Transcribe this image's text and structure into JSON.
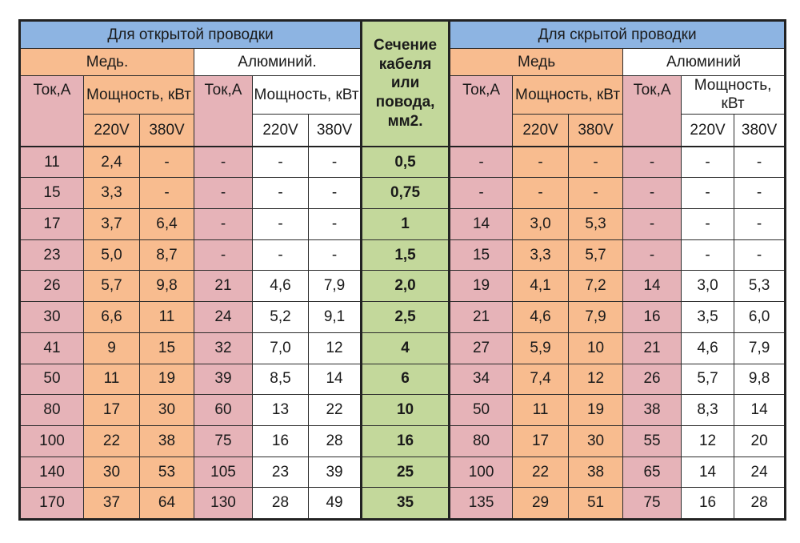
{
  "table": {
    "open_wiring": "Для открытой проводки",
    "hidden_wiring": "Для скрытой проводки",
    "section_header": [
      "Сечение",
      "кабеля",
      "или",
      "повода,",
      "мм2."
    ],
    "open_copper": "Медь.",
    "open_aluminum": "Алюминий.",
    "hidden_copper": "Медь",
    "hidden_aluminum": "Алюминий",
    "current": "Ток,А",
    "power": "Мощность, кВт",
    "v220": "220V",
    "v380": "380V",
    "rows": [
      [
        "11",
        "2,4",
        "-",
        "-",
        "-",
        "-",
        "0,5",
        "-",
        "-",
        "-",
        "-",
        "-",
        "-"
      ],
      [
        "15",
        "3,3",
        "-",
        "-",
        "-",
        "-",
        "0,75",
        "-",
        "-",
        "-",
        "-",
        "-",
        "-"
      ],
      [
        "17",
        "3,7",
        "6,4",
        "-",
        "-",
        "-",
        "1",
        "14",
        "3,0",
        "5,3",
        "-",
        "-",
        "-"
      ],
      [
        "23",
        "5,0",
        "8,7",
        "-",
        "-",
        "-",
        "1,5",
        "15",
        "3,3",
        "5,7",
        "-",
        "-",
        "-"
      ],
      [
        "26",
        "5,7",
        "9,8",
        "21",
        "4,6",
        "7,9",
        "2,0",
        "19",
        "4,1",
        "7,2",
        "14",
        "3,0",
        "5,3"
      ],
      [
        "30",
        "6,6",
        "11",
        "24",
        "5,2",
        "9,1",
        "2,5",
        "21",
        "4,6",
        "7,9",
        "16",
        "3,5",
        "6,0"
      ],
      [
        "41",
        "9",
        "15",
        "32",
        "7,0",
        "12",
        "4",
        "27",
        "5,9",
        "10",
        "21",
        "4,6",
        "7,9"
      ],
      [
        "50",
        "11",
        "19",
        "39",
        "8,5",
        "14",
        "6",
        "34",
        "7,4",
        "12",
        "26",
        "5,7",
        "9,8"
      ],
      [
        "80",
        "17",
        "30",
        "60",
        "13",
        "22",
        "10",
        "50",
        "11",
        "19",
        "38",
        "8,3",
        "14"
      ],
      [
        "100",
        "22",
        "38",
        "75",
        "16",
        "28",
        "16",
        "80",
        "17",
        "30",
        "55",
        "12",
        "20"
      ],
      [
        "140",
        "30",
        "53",
        "105",
        "23",
        "39",
        "25",
        "100",
        "22",
        "38",
        "65",
        "14",
        "24"
      ],
      [
        "170",
        "37",
        "64",
        "130",
        "28",
        "49",
        "35",
        "135",
        "29",
        "51",
        "75",
        "16",
        "28"
      ]
    ]
  }
}
